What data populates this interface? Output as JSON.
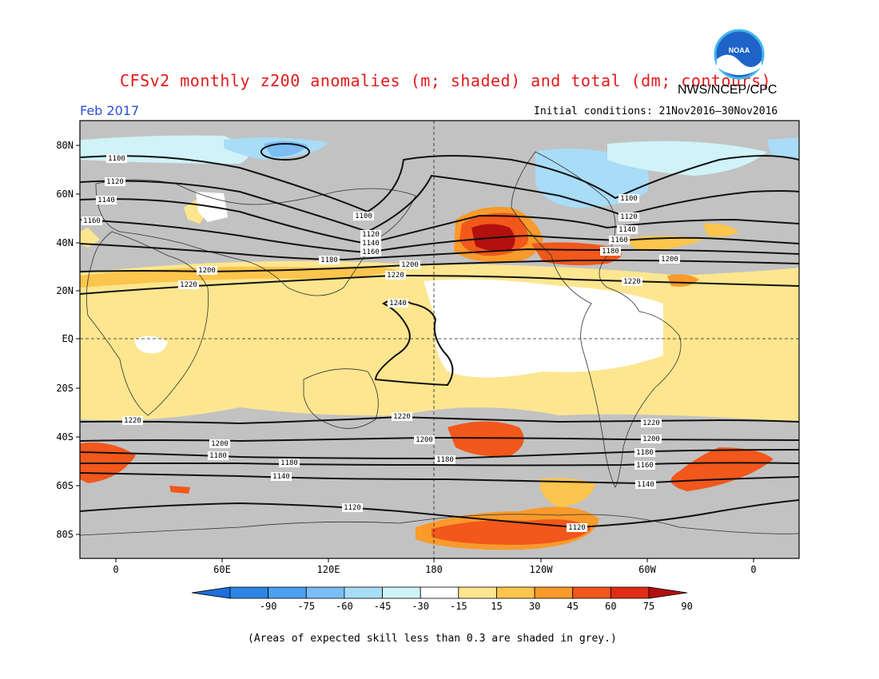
{
  "header": {
    "title": "CFSv2 monthly z200 anomalies (m; shaded) and total (dm; contours)",
    "agency": "NWS/NCEP/CPC",
    "period": "Feb 2017",
    "initial_conditions": "Initial conditions: 21Nov2016–30Nov2016",
    "logo_text": "NOAA"
  },
  "axes": {
    "lat_labels": [
      "80N",
      "60N",
      "40N",
      "20N",
      "EQ",
      "20S",
      "40S",
      "60S",
      "80S"
    ],
    "lon_labels": [
      "0",
      "60E",
      "120E",
      "180",
      "120W",
      "60W",
      "0"
    ]
  },
  "colorbar": {
    "labels": [
      "-90",
      "-75",
      "-60",
      "-45",
      "-30",
      "-15",
      "15",
      "30",
      "45",
      "60",
      "75",
      "90"
    ],
    "colors": [
      "#1e6fdc",
      "#2d86e6",
      "#4aa0ef",
      "#7bbdf5",
      "#a8dcf7",
      "#cff3f7",
      "#ffffff",
      "#fde68f",
      "#fcc54d",
      "#f99a2a",
      "#f2571b",
      "#e02c14",
      "#b30f0f"
    ]
  },
  "contour_labels": [
    "1100",
    "1120",
    "1140",
    "1160",
    "1180",
    "1200",
    "1220",
    "1240"
  ],
  "footnote": "(Areas of expected skill less than 0.3 are shaded in grey.)",
  "colors": {
    "skill_mask": "#c2c2c2",
    "title": "#e31a1c",
    "period": "#2b4fd6"
  }
}
